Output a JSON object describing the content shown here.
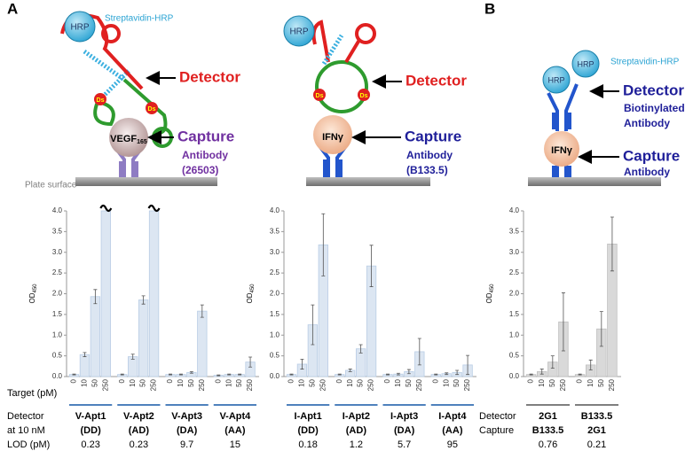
{
  "panel_labels": [
    "A",
    "B"
  ],
  "diagrams": [
    {
      "hrp": "HRP",
      "streptavidin": "Streptavidin-HRP",
      "detector": "Detector",
      "target": "VEGF",
      "target_sub": "165",
      "ds": "Ds",
      "capture": "Capture",
      "capture_line1": "Antibody",
      "capture_line2": "(26503)",
      "plate": "Plate surface"
    },
    {
      "hrp": "HRP",
      "detector": "Detector",
      "target": "IFNγ",
      "ds": "Ds",
      "capture": "Capture",
      "capture_line1": "Antibody",
      "capture_line2": "(B133.5)"
    },
    {
      "hrp": "HRP",
      "streptavidin": "Streptavidin-HRP",
      "detector": "Detector",
      "detector_line1": "Biotinylated",
      "detector_line2": "Antibody",
      "target": "IFNγ",
      "capture": "Capture",
      "capture_line1": "Antibody"
    }
  ],
  "chart_data": [
    {
      "type": "bar",
      "ylabel": "OD",
      "ylabel_sub": "450",
      "ylim": [
        0,
        4
      ],
      "yticks": [
        {
          "value": 0,
          "label": "0.0"
        },
        {
          "value": 0.5,
          "label": "0.5"
        },
        {
          "value": 1,
          "label": "1.0"
        },
        {
          "value": 1.5,
          "label": "1.5"
        },
        {
          "value": 2,
          "label": "2.0"
        },
        {
          "value": 2.5,
          "label": "2.5"
        },
        {
          "value": 3,
          "label": "3.0"
        },
        {
          "value": 3.5,
          "label": "3.5"
        },
        {
          "value": 4,
          "label": "4.0"
        }
      ],
      "categories": [
        "0",
        "10",
        "50",
        "250"
      ],
      "color": "#dce6f2",
      "edge": "#b9cde5",
      "line_color": "#4f81bd",
      "x_title": "Target (pM)",
      "row_labels": [
        "Detector",
        "at 10 nM",
        "LOD (pM)"
      ],
      "groups": [
        {
          "name": "V-Apt1",
          "sub": "(DD)",
          "lod": 0.23,
          "values": [
            0.05,
            0.53,
            1.93,
            4.0
          ],
          "errors": [
            0.01,
            0.05,
            0.17,
            null
          ]
        },
        {
          "name": "V-Apt2",
          "sub": "(AD)",
          "lod": 0.23,
          "values": [
            0.05,
            0.48,
            1.85,
            4.0
          ],
          "errors": [
            0.01,
            0.06,
            0.1,
            null
          ]
        },
        {
          "name": "V-Apt3",
          "sub": "(DA)",
          "lod": 9.7,
          "values": [
            0.05,
            0.05,
            0.1,
            1.58
          ],
          "errors": [
            0.01,
            0.01,
            0.02,
            0.15
          ]
        },
        {
          "name": "V-Apt4",
          "sub": "(AA)",
          "lod": 15,
          "values": [
            0.03,
            0.05,
            0.05,
            0.35
          ],
          "errors": [
            0.01,
            0.01,
            0.01,
            0.12
          ]
        }
      ]
    },
    {
      "type": "bar",
      "ylabel": "OD",
      "ylabel_sub": "450",
      "ylim": [
        0,
        4
      ],
      "yticks": [
        {
          "value": 0,
          "label": "0.0"
        },
        {
          "value": 0.5,
          "label": "0.5"
        },
        {
          "value": 1,
          "label": "1.0"
        },
        {
          "value": 1.5,
          "label": "1.5"
        },
        {
          "value": 2,
          "label": "2.0"
        },
        {
          "value": 2.5,
          "label": "2.5"
        },
        {
          "value": 3,
          "label": "3.0"
        },
        {
          "value": 3.5,
          "label": "3.5"
        },
        {
          "value": 4,
          "label": "4.0"
        }
      ],
      "categories": [
        "0",
        "10",
        "50",
        "250"
      ],
      "color": "#dce6f2",
      "edge": "#b9cde5",
      "line_color": "#4f81bd",
      "groups": [
        {
          "name": "I-Apt1",
          "sub": "(DD)",
          "lod": 0.18,
          "values": [
            0.05,
            0.3,
            1.25,
            3.18
          ],
          "errors": [
            0.01,
            0.12,
            0.48,
            0.75
          ]
        },
        {
          "name": "I-Apt2",
          "sub": "(AD)",
          "lod": 1.2,
          "values": [
            0.05,
            0.15,
            0.67,
            2.67
          ],
          "errors": [
            0.01,
            0.03,
            0.1,
            0.5
          ]
        },
        {
          "name": "I-Apt3",
          "sub": "(DA)",
          "lod": 5.7,
          "values": [
            0.05,
            0.06,
            0.12,
            0.6
          ],
          "errors": [
            0.01,
            0.02,
            0.05,
            0.32
          ]
        },
        {
          "name": "I-Apt4",
          "sub": "(AA)",
          "lod": 95,
          "values": [
            0.05,
            0.07,
            0.1,
            0.28
          ],
          "errors": [
            0.01,
            0.02,
            0.05,
            0.23
          ]
        }
      ]
    },
    {
      "type": "bar",
      "ylabel": "OD",
      "ylabel_sub": "450",
      "ylim": [
        0,
        4
      ],
      "yticks": [
        {
          "value": 0,
          "label": "0.0"
        },
        {
          "value": 0.5,
          "label": "0.5"
        },
        {
          "value": 1,
          "label": "1.0"
        },
        {
          "value": 1.5,
          "label": "1.5"
        },
        {
          "value": 2,
          "label": "2.0"
        },
        {
          "value": 2.5,
          "label": "2.5"
        },
        {
          "value": 3,
          "label": "3.0"
        },
        {
          "value": 3.5,
          "label": "3.5"
        },
        {
          "value": 4,
          "label": "4.0"
        }
      ],
      "categories": [
        "0",
        "10",
        "50",
        "250"
      ],
      "color": "#d9d9d9",
      "edge": "#bfbfbf",
      "line_color": "#7f7f7f",
      "row_labels": [
        "Detector",
        "Capture"
      ],
      "groups": [
        {
          "name": "2G1",
          "sub": "B133.5",
          "lod": 0.76,
          "values": [
            0.05,
            0.12,
            0.35,
            1.32
          ],
          "errors": [
            0.01,
            0.06,
            0.15,
            0.7
          ]
        },
        {
          "name": "B133.5",
          "sub": "2G1",
          "lod": 0.21,
          "values": [
            0.05,
            0.28,
            1.15,
            3.2
          ],
          "errors": [
            0.01,
            0.12,
            0.42,
            0.65
          ]
        }
      ]
    }
  ]
}
